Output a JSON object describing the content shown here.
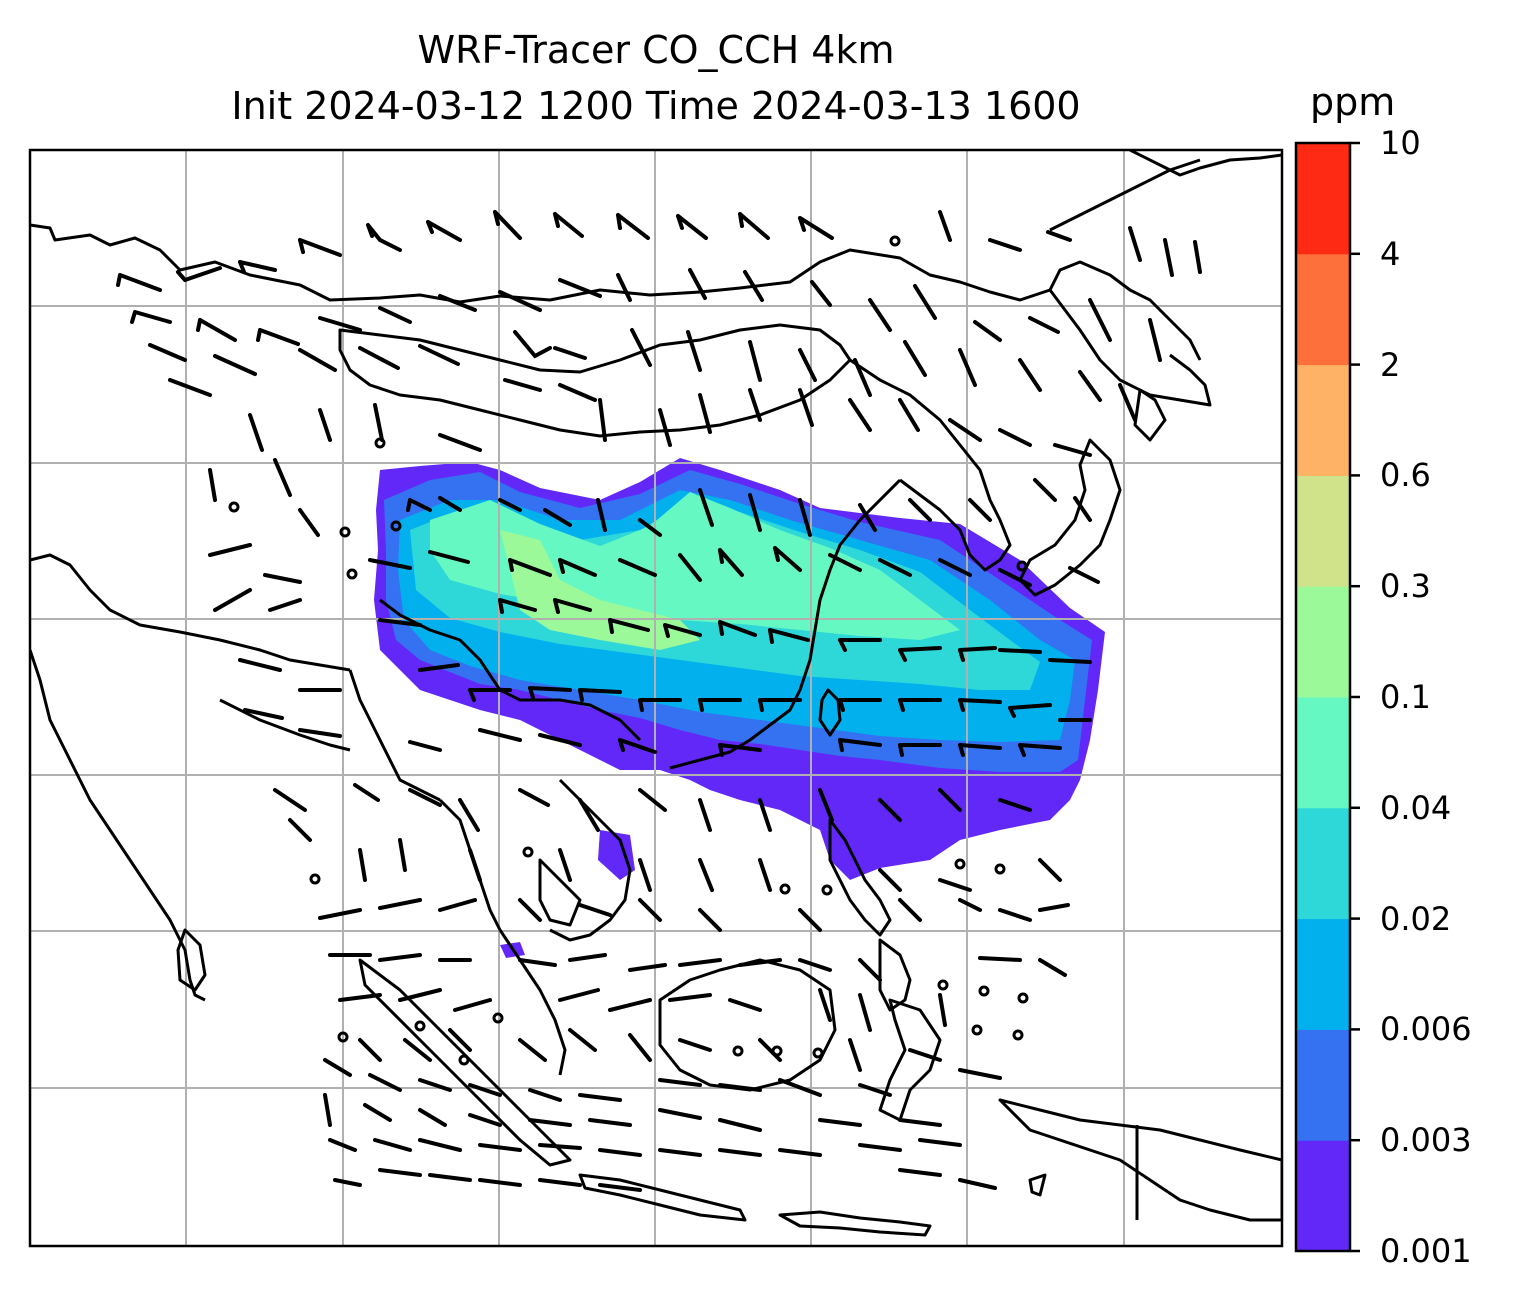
{
  "title": {
    "line1": "WRF-Tracer CO_CCH 4km",
    "line2": "Init 2024-03-12 1200 Time 2024-03-13 1600"
  },
  "colorbar": {
    "unit": "ppm",
    "tick_labels": [
      "0.001",
      "0.003",
      "0.006",
      "0.02",
      "0.04",
      "0.1",
      "0.3",
      "0.6",
      "2",
      "4",
      "10"
    ],
    "colors": [
      "#6228f7",
      "#3472f2",
      "#02b0ee",
      "#2ed8d8",
      "#65f8c2",
      "#9bf99a",
      "#d0e38a",
      "#feb265",
      "#fe703b",
      "#fe2a14"
    ]
  },
  "map": {
    "frame_color": "#000000",
    "grid_color": "#b0b0b0",
    "coastline_color": "#000000",
    "barb_color": "#000000"
  }
}
